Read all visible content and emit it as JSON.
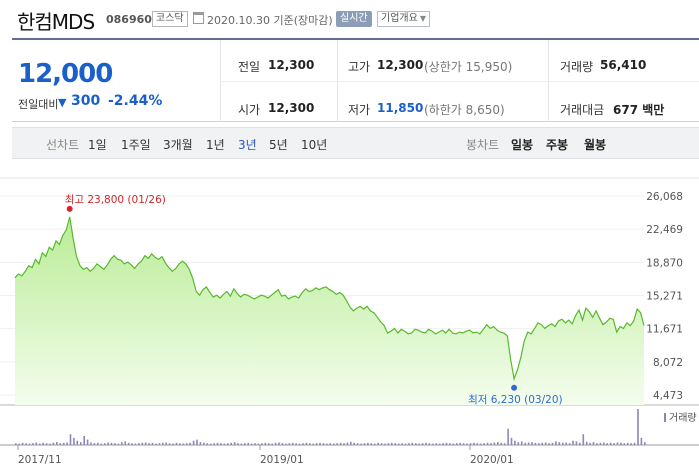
{
  "header": {
    "name": "한컴MDS",
    "code": "086960",
    "market": "코스닥",
    "date": "2020.10.30",
    "date_suffix": "기준(장마감)",
    "realtime": "실시간",
    "company_overview": "기업개요",
    "colors": {
      "realtime_bg": "#8c9eb7",
      "summary_border": "#5f6f90"
    }
  },
  "summary": {
    "price": "12,000",
    "change_label": "전일대비",
    "change_direction": "down",
    "change_abs": "300",
    "change_pct": "-2.44%",
    "color_down": "#1a5fca",
    "prev_close_label": "전일",
    "prev_close": "12,300",
    "open_label": "시가",
    "open": "12,300",
    "high_label": "고가",
    "high": "12,300",
    "upper_limit": "(상한가 15,950)",
    "low_label": "저가",
    "low": "11,850",
    "lower_limit": "(하한가 8,650)",
    "volume_label": "거래량",
    "volume": "56,410",
    "amount_label": "거래대금",
    "amount": "677 백만"
  },
  "tabs": {
    "line_label": "선차트",
    "line": [
      "1일",
      "1주일",
      "3개월",
      "1년",
      "3년",
      "5년",
      "10년"
    ],
    "line_active": "3년",
    "candle_label": "봉차트",
    "candle": [
      "일봉",
      "주봉",
      "월봉"
    ]
  },
  "chart_data": {
    "type": "area",
    "y_ticks": [
      "26,068",
      "22,469",
      "18,870",
      "15,271",
      "11,671",
      "8,072",
      "4,473"
    ],
    "ylim": [
      4473,
      26068
    ],
    "x_labels": [
      "2017/11",
      "2019/01",
      "2020/01"
    ],
    "high_annotation": "최고 23,800 (01/26)",
    "low_annotation": "최저 6,230 (03/20)",
    "volume_label": "거래량",
    "series": [
      {
        "values": [
          17200,
          17600,
          17400,
          17900,
          18500,
          18300,
          19200,
          18700,
          19900,
          19500,
          20500,
          20200,
          21200,
          20800,
          21800,
          22400,
          23800,
          21500,
          19500,
          18500,
          18100,
          18300,
          17900,
          18200,
          18700,
          18400,
          18100,
          18600,
          19200,
          19600,
          19200,
          19100,
          18700,
          18900,
          18600,
          18200,
          18700,
          19000,
          19600,
          19300,
          19800,
          19400,
          19200,
          19500,
          18800,
          18300,
          17900,
          18200,
          18700,
          19000,
          18700,
          18100,
          17100,
          15700,
          15300,
          15900,
          16200,
          15600,
          15100,
          15300,
          15000,
          15400,
          15700,
          15200,
          16000,
          15500,
          15100,
          15400,
          15300,
          15100,
          14900,
          15100,
          15300,
          15200,
          15000,
          15300,
          15600,
          15900,
          15200,
          15300,
          14900,
          15100,
          15200,
          15000,
          15600,
          16000,
          15700,
          15800,
          16100,
          15900,
          16100,
          16200,
          15900,
          15700,
          15400,
          15600,
          15300,
          14700,
          14000,
          13600,
          13900,
          14100,
          13800,
          14100,
          13600,
          13400,
          12900,
          12400,
          12000,
          11200,
          11400,
          11700,
          11200,
          11600,
          11400,
          11100,
          11200,
          11600,
          11500,
          11300,
          11200,
          11600,
          11400,
          11100,
          11300,
          11500,
          11200,
          11600,
          11200,
          11100,
          11300,
          11200,
          11400,
          11500,
          11200,
          11300,
          11100,
          11600,
          12100,
          11700,
          11900,
          11500,
          11300,
          11200,
          10900,
          8300,
          6230,
          7200,
          8600,
          10400,
          11300,
          11100,
          11700,
          12300,
          12100,
          11700,
          12000,
          12200,
          11900,
          12500,
          12700,
          12300,
          12600,
          12200,
          13100,
          13700,
          12600,
          13900,
          13500,
          12900,
          13600,
          12800,
          12100,
          12400,
          12800,
          12700,
          11300,
          11900,
          11700,
          12300,
          12000,
          12500,
          13800,
          13400,
          12000
        ]
      }
    ],
    "volume_rel": [
      0.05,
      0.04,
      0.06,
      0.05,
      0.04,
      0.05,
      0.07,
      0.04,
      0.06,
      0.05,
      0.04,
      0.06,
      0.08,
      0.05,
      0.06,
      0.07,
      0.3,
      0.2,
      0.12,
      0.08,
      0.25,
      0.15,
      0.07,
      0.05,
      0.06,
      0.04,
      0.05,
      0.07,
      0.06,
      0.05,
      0.04,
      0.08,
      0.1,
      0.06,
      0.05,
      0.04,
      0.05,
      0.06,
      0.07,
      0.05,
      0.06,
      0.04,
      0.05,
      0.06,
      0.07,
      0.05,
      0.04,
      0.06,
      0.05,
      0.04,
      0.05,
      0.06,
      0.12,
      0.15,
      0.08,
      0.06,
      0.05,
      0.04,
      0.05,
      0.06,
      0.05,
      0.04,
      0.05,
      0.06,
      0.08,
      0.05,
      0.04,
      0.05,
      0.06,
      0.04,
      0.05,
      0.04,
      0.05,
      0.06,
      0.05,
      0.04,
      0.06,
      0.07,
      0.05,
      0.04,
      0.05,
      0.06,
      0.05,
      0.04,
      0.05,
      0.06,
      0.05,
      0.04,
      0.05,
      0.06,
      0.05,
      0.04,
      0.05,
      0.04,
      0.05,
      0.06,
      0.05,
      0.07,
      0.09,
      0.06,
      0.05,
      0.04,
      0.05,
      0.06,
      0.05,
      0.04,
      0.06,
      0.05,
      0.04,
      0.05,
      0.06,
      0.05,
      0.04,
      0.05,
      0.04,
      0.05,
      0.06,
      0.05,
      0.04,
      0.05,
      0.06,
      0.05,
      0.04,
      0.05,
      0.04,
      0.05,
      0.06,
      0.05,
      0.04,
      0.05,
      0.06,
      0.05,
      0.04,
      0.05,
      0.06,
      0.05,
      0.04,
      0.05,
      0.06,
      0.05,
      0.07,
      0.08,
      0.06,
      0.05,
      0.45,
      0.2,
      0.12,
      0.08,
      0.1,
      0.06,
      0.07,
      0.08,
      0.06,
      0.05,
      0.06,
      0.07,
      0.05,
      0.06,
      0.1,
      0.08,
      0.06,
      0.07,
      0.05,
      0.12,
      0.1,
      0.06,
      0.3,
      0.09,
      0.06,
      0.08,
      0.05,
      0.06,
      0.07,
      0.05,
      0.06,
      0.05,
      0.07,
      0.06,
      0.05,
      0.06,
      0.05,
      0.06,
      1.0,
      0.2,
      0.08
    ],
    "colors": {
      "fill_top": "#b9ec95",
      "fill_bottom": "#f4fdee",
      "line": "#58b92c",
      "volume": "#8d86b8",
      "high_marker": "#d2262c",
      "low_marker": "#2f6bd0"
    }
  }
}
